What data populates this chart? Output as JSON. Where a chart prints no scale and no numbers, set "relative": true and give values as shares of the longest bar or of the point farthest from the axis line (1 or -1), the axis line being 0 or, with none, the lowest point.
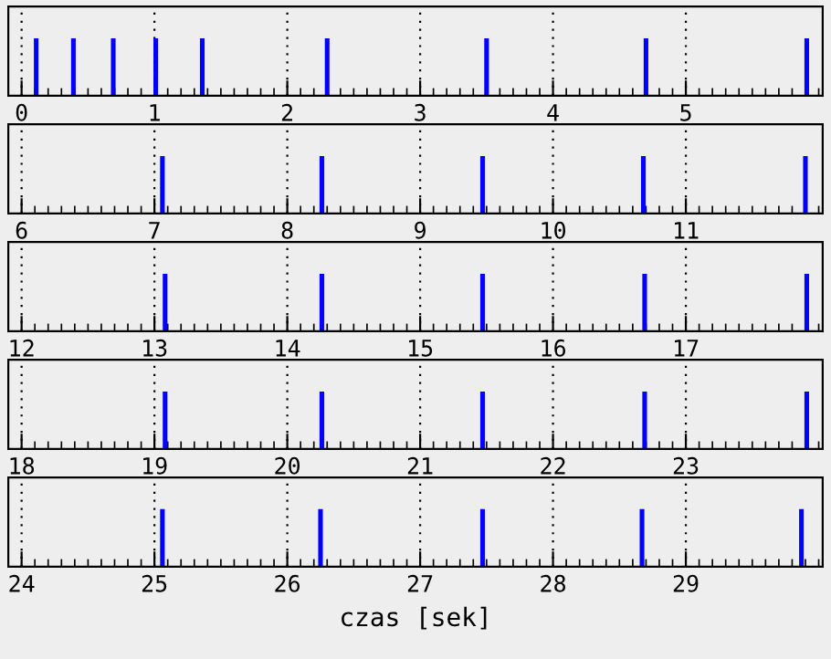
{
  "chart_data": [
    {
      "type": "bar",
      "relative": true,
      "grid": "x",
      "xlim": [
        -0.1,
        6.03
      ],
      "xticks": [
        0,
        1,
        2,
        3,
        4,
        5
      ],
      "series": [
        {
          "color": "#0000ff",
          "x": [
            0.11,
            0.39,
            0.69,
            1.01,
            1.36,
            2.3,
            3.5,
            4.7,
            5.91
          ],
          "values": [
            1,
            1,
            1,
            1,
            1,
            1,
            1,
            1,
            1
          ]
        }
      ]
    },
    {
      "type": "bar",
      "relative": true,
      "grid": "x",
      "xlim": [
        5.9,
        12.03
      ],
      "xticks": [
        6,
        7,
        8,
        9,
        10,
        11
      ],
      "series": [
        {
          "color": "#0000ff",
          "x": [
            7.06,
            8.26,
            9.47,
            10.68,
            11.9
          ],
          "values": [
            1,
            1,
            1,
            1,
            1
          ]
        }
      ]
    },
    {
      "type": "bar",
      "relative": true,
      "grid": "x",
      "xlim": [
        11.9,
        18.03
      ],
      "xticks": [
        12,
        13,
        14,
        15,
        16,
        17
      ],
      "series": [
        {
          "color": "#0000ff",
          "x": [
            13.08,
            14.26,
            15.47,
            16.69,
            17.91
          ],
          "values": [
            1,
            1,
            1,
            1,
            1
          ]
        }
      ]
    },
    {
      "type": "bar",
      "relative": true,
      "grid": "x",
      "xlim": [
        17.9,
        24.03
      ],
      "xticks": [
        18,
        19,
        20,
        21,
        22,
        23
      ],
      "series": [
        {
          "color": "#0000ff",
          "x": [
            19.08,
            20.26,
            21.47,
            22.69,
            23.91
          ],
          "values": [
            1,
            1,
            1,
            1,
            1
          ]
        }
      ]
    },
    {
      "type": "bar",
      "relative": true,
      "grid": "x",
      "xlim": [
        23.9,
        30.03
      ],
      "xticks": [
        24,
        25,
        26,
        27,
        28,
        29
      ],
      "xlabel": "czas [sek]",
      "series": [
        {
          "color": "#0000ff",
          "x": [
            25.06,
            26.25,
            27.47,
            28.67,
            29.87
          ],
          "values": [
            1,
            1,
            1,
            1,
            1
          ]
        }
      ]
    }
  ]
}
